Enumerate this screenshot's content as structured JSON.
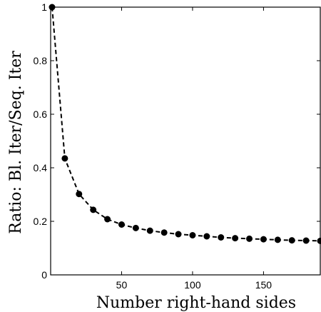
{
  "chart_data": {
    "type": "line",
    "title": "",
    "xlabel": "Number right-hand sides",
    "ylabel": "Ratio: Bl. Iter/Seq. Iter",
    "xlim": [
      0,
      190
    ],
    "ylim": [
      0,
      1
    ],
    "x_ticks": [
      50,
      100,
      150
    ],
    "x_tick_labels": [
      "50",
      "100",
      "150"
    ],
    "y_ticks": [
      0,
      0.2,
      0.4,
      0.6,
      0.8,
      1
    ],
    "y_tick_labels": [
      "0",
      "0.2",
      "0.4",
      "0.6",
      "0.8",
      "1"
    ],
    "grid": false,
    "line_style": "dashed",
    "marker": "filled-circle",
    "color": "#000000",
    "series": [
      {
        "x": [
          1,
          10,
          20,
          30,
          40,
          50,
          60,
          70,
          80,
          90,
          100,
          110,
          120,
          130,
          140,
          150,
          160,
          170,
          180,
          190
        ],
        "y": [
          1.0,
          0.435,
          0.302,
          0.243,
          0.208,
          0.188,
          0.175,
          0.165,
          0.158,
          0.152,
          0.148,
          0.144,
          0.14,
          0.137,
          0.135,
          0.133,
          0.131,
          0.129,
          0.128,
          0.127
        ]
      }
    ]
  }
}
